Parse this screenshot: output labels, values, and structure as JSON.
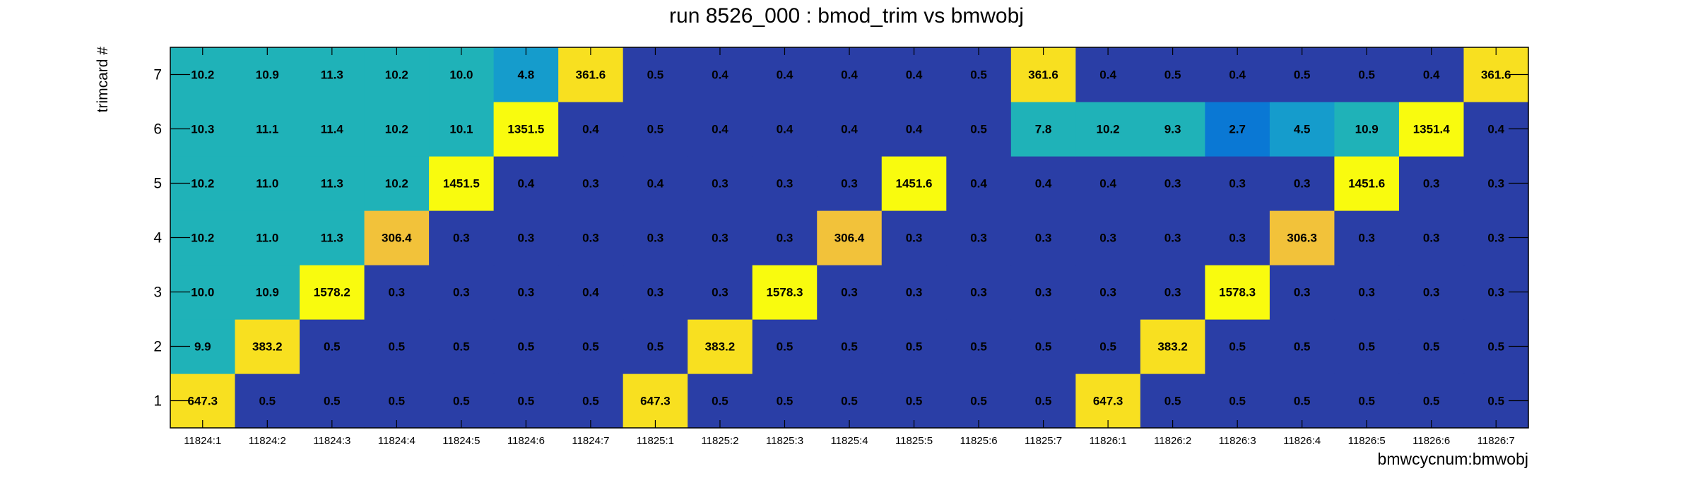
{
  "chart_data": {
    "type": "heatmap",
    "title": "run 8526_000 : bmod_trim vs bmwobj",
    "xlabel": "bmwcycnum:bmwobj",
    "ylabel": "trimcard #",
    "x_categories": [
      "11824:1",
      "11824:2",
      "11824:3",
      "11824:4",
      "11824:5",
      "11824:6",
      "11824:7",
      "11825:1",
      "11825:2",
      "11825:3",
      "11825:4",
      "11825:5",
      "11825:6",
      "11825:7",
      "11826:1",
      "11826:2",
      "11826:3",
      "11826:4",
      "11826:5",
      "11826:6",
      "11826:7"
    ],
    "y_categories": [
      "1",
      "2",
      "3",
      "4",
      "5",
      "6",
      "7"
    ],
    "values": [
      [
        647.3,
        0.5,
        0.5,
        0.5,
        0.5,
        0.5,
        0.5,
        647.3,
        0.5,
        0.5,
        0.5,
        0.5,
        0.5,
        0.5,
        647.3,
        0.5,
        0.5,
        0.5,
        0.5,
        0.5,
        0.5
      ],
      [
        9.9,
        383.2,
        0.5,
        0.5,
        0.5,
        0.5,
        0.5,
        0.5,
        383.2,
        0.5,
        0.5,
        0.5,
        0.5,
        0.5,
        0.5,
        383.2,
        0.5,
        0.5,
        0.5,
        0.5,
        0.5
      ],
      [
        10.0,
        10.9,
        1578.2,
        0.3,
        0.3,
        0.3,
        0.4,
        0.3,
        0.3,
        1578.3,
        0.3,
        0.3,
        0.3,
        0.3,
        0.3,
        0.3,
        1578.3,
        0.3,
        0.3,
        0.3,
        0.3
      ],
      [
        10.2,
        11.0,
        11.3,
        306.4,
        0.3,
        0.3,
        0.3,
        0.3,
        0.3,
        0.3,
        306.4,
        0.3,
        0.3,
        0.3,
        0.3,
        0.3,
        0.3,
        306.3,
        0.3,
        0.3,
        0.3
      ],
      [
        10.2,
        11.0,
        11.3,
        10.2,
        1451.5,
        0.4,
        0.3,
        0.4,
        0.3,
        0.3,
        0.3,
        1451.6,
        0.4,
        0.4,
        0.4,
        0.3,
        0.3,
        0.3,
        1451.6,
        0.3,
        0.3
      ],
      [
        10.3,
        11.1,
        11.4,
        10.2,
        10.1,
        1351.5,
        0.4,
        0.5,
        0.4,
        0.4,
        0.4,
        0.4,
        0.5,
        7.8,
        10.2,
        9.3,
        2.7,
        4.5,
        10.9,
        1351.4,
        0.4
      ],
      [
        10.2,
        10.9,
        11.3,
        10.2,
        10.0,
        4.8,
        361.6,
        0.5,
        0.4,
        0.4,
        0.4,
        0.4,
        0.5,
        361.6,
        0.4,
        0.5,
        0.4,
        0.5,
        0.5,
        0.4,
        361.6
      ]
    ],
    "value_labels": [
      [
        "647.3",
        "0.5",
        "0.5",
        "0.5",
        "0.5",
        "0.5",
        "0.5",
        "647.3",
        "0.5",
        "0.5",
        "0.5",
        "0.5",
        "0.5",
        "0.5",
        "647.3",
        "0.5",
        "0.5",
        "0.5",
        "0.5",
        "0.5",
        "0.5"
      ],
      [
        "9.9",
        "383.2",
        "0.5",
        "0.5",
        "0.5",
        "0.5",
        "0.5",
        "0.5",
        "383.2",
        "0.5",
        "0.5",
        "0.5",
        "0.5",
        "0.5",
        "0.5",
        "383.2",
        "0.5",
        "0.5",
        "0.5",
        "0.5",
        "0.5"
      ],
      [
        "10.0",
        "10.9",
        "1578.2",
        "0.3",
        "0.3",
        "0.3",
        "0.4",
        "0.3",
        "0.3",
        "1578.3",
        "0.3",
        "0.3",
        "0.3",
        "0.3",
        "0.3",
        "0.3",
        "1578.3",
        "0.3",
        "0.3",
        "0.3",
        "0.3"
      ],
      [
        "10.2",
        "11.0",
        "11.3",
        "306.4",
        "0.3",
        "0.3",
        "0.3",
        "0.3",
        "0.3",
        "0.3",
        "306.4",
        "0.3",
        "0.3",
        "0.3",
        "0.3",
        "0.3",
        "0.3",
        "306.3",
        "0.3",
        "0.3",
        "0.3"
      ],
      [
        "10.2",
        "11.0",
        "11.3",
        "10.2",
        "1451.5",
        "0.4",
        "0.3",
        "0.4",
        "0.3",
        "0.3",
        "0.3",
        "1451.6",
        "0.4",
        "0.4",
        "0.4",
        "0.3",
        "0.3",
        "0.3",
        "1451.6",
        "0.3",
        "0.3"
      ],
      [
        "10.3",
        "11.1",
        "11.4",
        "10.2",
        "10.1",
        "1351.5",
        "0.4",
        "0.5",
        "0.4",
        "0.4",
        "0.4",
        "0.4",
        "0.5",
        "7.8",
        "10.2",
        "9.3",
        "2.7",
        "4.5",
        "10.9",
        "1351.4",
        "0.4"
      ],
      [
        "10.2",
        "10.9",
        "11.3",
        "10.2",
        "10.0",
        "4.8",
        "361.6",
        "0.5",
        "0.4",
        "0.4",
        "0.4",
        "0.4",
        "0.5",
        "361.6",
        "0.4",
        "0.5",
        "0.4",
        "0.5",
        "0.5",
        "0.4",
        "361.6"
      ]
    ],
    "palette": [
      "#2a3ea6",
      "#1a56cc",
      "#0a78d4",
      "#159ccc",
      "#1fb2b8",
      "#3cbf9a",
      "#78c47a",
      "#b8c050",
      "#f2c23a",
      "#f8e020",
      "#f9fb0e"
    ],
    "scale": "log",
    "grid": false,
    "legend": "none"
  }
}
